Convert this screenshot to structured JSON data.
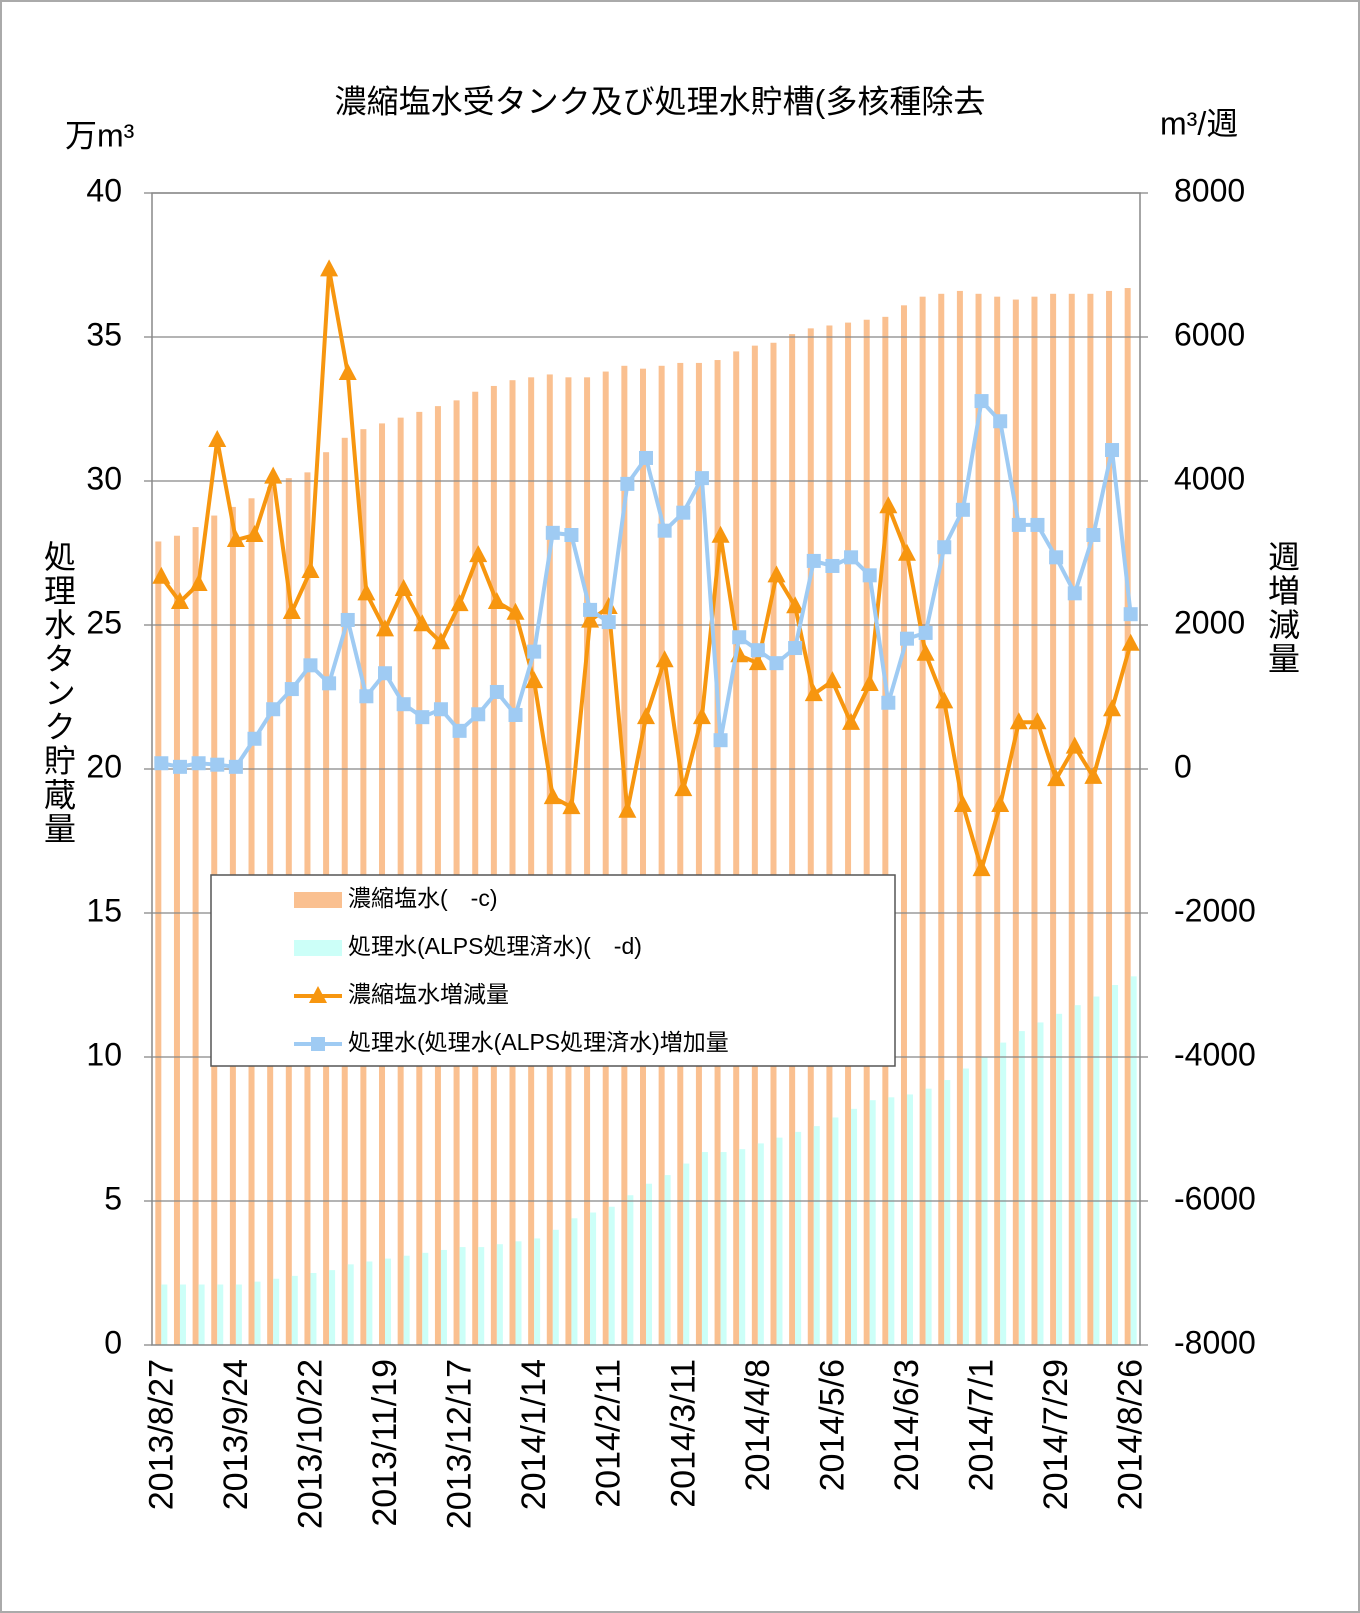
{
  "chart_data": {
    "type": "bar",
    "title": "濃縮塩水受タンク及び処理水貯槽(多核種除去",
    "y_unit": "万m³",
    "y2_unit": "m³/週",
    "y_label": "処理水タンク貯蔵量",
    "y2_label": "週増減量",
    "categories": [
      "2013/8/27",
      null,
      null,
      null,
      "2013/9/24",
      null,
      null,
      null,
      "2013/10/22",
      null,
      null,
      null,
      "2013/11/19",
      null,
      null,
      null,
      "2013/12/17",
      null,
      null,
      null,
      "2014/1/14",
      null,
      null,
      null,
      "2014/2/11",
      null,
      null,
      null,
      "2014/3/11",
      null,
      null,
      null,
      "2014/4/8",
      null,
      null,
      null,
      "2014/5/6",
      null,
      null,
      null,
      "2014/6/3",
      null,
      null,
      null,
      "2014/7/1",
      null,
      null,
      null,
      "2014/7/29",
      null,
      null,
      null,
      "2014/8/26"
    ],
    "series": [
      {
        "name": "濃縮塩水(　-c)",
        "type": "bar",
        "color": "#fac090",
        "values": [
          27.9,
          28.1,
          28.4,
          28.8,
          29.1,
          29.4,
          29.8,
          30.1,
          30.3,
          31.0,
          31.5,
          31.8,
          32.0,
          32.2,
          32.4,
          32.6,
          32.8,
          33.1,
          33.3,
          33.5,
          33.6,
          33.7,
          33.6,
          33.6,
          33.8,
          34.0,
          33.9,
          34.0,
          34.1,
          34.1,
          34.2,
          34.5,
          34.7,
          34.8,
          35.1,
          35.3,
          35.4,
          35.5,
          35.6,
          35.7,
          36.1,
          36.4,
          36.5,
          36.6,
          36.5,
          36.4,
          36.3,
          36.4,
          36.5,
          36.5,
          36.5,
          36.6,
          36.7
        ]
      },
      {
        "name": "処理水(ALPS処理済水)(　-d)",
        "type": "bar",
        "color": "#ccfff8",
        "values": [
          2.1,
          2.1,
          2.1,
          2.1,
          2.1,
          2.2,
          2.3,
          2.4,
          2.5,
          2.6,
          2.8,
          2.9,
          3.0,
          3.1,
          3.2,
          3.3,
          3.4,
          3.4,
          3.5,
          3.6,
          3.7,
          4.0,
          4.4,
          4.6,
          4.8,
          5.2,
          5.6,
          5.9,
          6.3,
          6.7,
          6.7,
          6.8,
          7.0,
          7.2,
          7.4,
          7.6,
          7.9,
          8.2,
          8.5,
          8.6,
          8.7,
          8.9,
          9.2,
          9.6,
          10.0,
          10.5,
          10.9,
          11.2,
          11.5,
          11.8,
          12.1,
          12.5,
          12.8
        ]
      },
      {
        "name": "濃縮塩水増減量",
        "type": "line",
        "marker": "triangle",
        "axis": "y2",
        "color": "#f7960f",
        "values": [
          2670,
          2320,
          2570,
          4570,
          3180,
          3250,
          4060,
          2180,
          2750,
          6940,
          5500,
          2440,
          1940,
          2500,
          2010,
          1760,
          2290,
          2970,
          2320,
          2170,
          1220,
          -390,
          -530,
          2060,
          2250,
          -580,
          720,
          1510,
          -280,
          720,
          3240,
          1580,
          1470,
          2690,
          2260,
          1040,
          1220,
          640,
          1180,
          3650,
          2990,
          1600,
          940,
          -500,
          -1390,
          -500,
          650,
          650,
          -140,
          310,
          -110,
          830,
          1740
        ]
      },
      {
        "name": "処理水(処理水(ALPS処理済水)増加量",
        "type": "line",
        "marker": "square",
        "axis": "y2",
        "color": "#9fcbf3",
        "values": [
          80,
          30,
          80,
          60,
          30,
          420,
          830,
          1110,
          1440,
          1190,
          2070,
          1010,
          1330,
          900,
          720,
          830,
          530,
          760,
          1070,
          750,
          1630,
          3280,
          3250,
          2210,
          2040,
          3960,
          4320,
          3310,
          3560,
          4040,
          400,
          1830,
          1650,
          1470,
          1680,
          2890,
          2820,
          2940,
          2690,
          920,
          1810,
          1890,
          3080,
          3600,
          5110,
          4830,
          3390,
          3390,
          2940,
          2440,
          3250,
          4430,
          2150
        ]
      }
    ],
    "ylim": [
      0,
      40
    ],
    "yticks": [
      0,
      5,
      10,
      15,
      20,
      25,
      30,
      35,
      40
    ],
    "y2lim": [
      -8000,
      8000
    ],
    "y2ticks": [
      -8000,
      -6000,
      -4000,
      -2000,
      0,
      2000,
      4000,
      6000,
      8000
    ],
    "grid": true
  }
}
